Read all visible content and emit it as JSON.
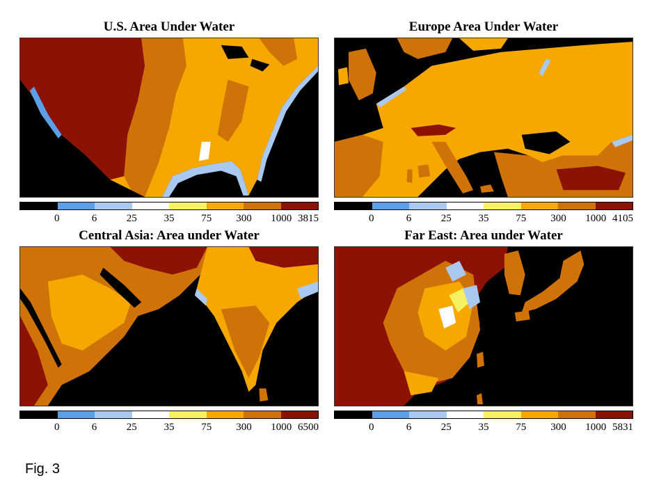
{
  "figure_caption": "Fig. 3",
  "colors": {
    "ocean": "#000000",
    "class_0_6": "#5b9fe6",
    "class_6_25": "#a9c9f0",
    "class_25_35": "#ffffff",
    "class_35_75": "#f6f160",
    "class_75_300": "#f7a800",
    "class_300_1000": "#cf7308",
    "class_1000_max": "#8c1206"
  },
  "colorbar_colors": [
    "#000000",
    "#5b9fe6",
    "#a9c9f0",
    "#ffffff",
    "#f6f160",
    "#f7a800",
    "#cf7308",
    "#8c1206"
  ],
  "panels": [
    {
      "title": "U.S. Area Under Water",
      "ticks": [
        "0",
        "6",
        "25",
        "35",
        "75",
        "300",
        "1000",
        "3815"
      ]
    },
    {
      "title": "Europe Area Under Water",
      "ticks": [
        "0",
        "6",
        "25",
        "35",
        "75",
        "300",
        "1000",
        "4105"
      ]
    },
    {
      "title": "Central Asia: Area under Water",
      "ticks": [
        "0",
        "6",
        "25",
        "35",
        "75",
        "300",
        "1000",
        "6500"
      ]
    },
    {
      "title": "Far East: Area under Water",
      "ticks": [
        "0",
        "6",
        "25",
        "35",
        "75",
        "300",
        "1000",
        "5831"
      ]
    }
  ]
}
